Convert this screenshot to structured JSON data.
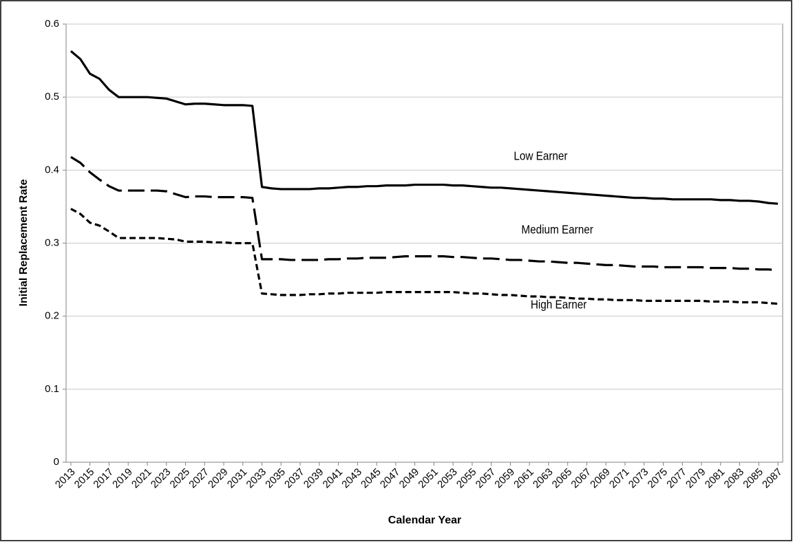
{
  "chart_data": {
    "type": "line",
    "xlabel": "Calendar Year",
    "ylabel": "Initial Replacement Rate",
    "x": [
      2013,
      2014,
      2015,
      2016,
      2017,
      2018,
      2019,
      2020,
      2021,
      2022,
      2023,
      2024,
      2025,
      2026,
      2027,
      2028,
      2029,
      2030,
      2031,
      2032,
      2033,
      2034,
      2035,
      2036,
      2037,
      2038,
      2039,
      2040,
      2041,
      2042,
      2043,
      2044,
      2045,
      2046,
      2047,
      2048,
      2049,
      2050,
      2051,
      2052,
      2053,
      2054,
      2055,
      2056,
      2057,
      2058,
      2059,
      2060,
      2061,
      2062,
      2063,
      2064,
      2065,
      2066,
      2067,
      2068,
      2069,
      2070,
      2071,
      2072,
      2073,
      2074,
      2075,
      2076,
      2077,
      2078,
      2079,
      2080,
      2081,
      2082,
      2083,
      2084,
      2085,
      2086,
      2087
    ],
    "xlim": [
      2012.5,
      2087.5
    ],
    "xticks": [
      2013,
      2015,
      2017,
      2019,
      2021,
      2023,
      2025,
      2027,
      2029,
      2031,
      2033,
      2035,
      2037,
      2039,
      2041,
      2043,
      2045,
      2047,
      2049,
      2051,
      2053,
      2055,
      2057,
      2059,
      2061,
      2063,
      2065,
      2067,
      2069,
      2071,
      2073,
      2075,
      2077,
      2079,
      2081,
      2083,
      2085,
      2087
    ],
    "ylim": [
      0,
      0.6
    ],
    "yticks": [
      0,
      0.1,
      0.2,
      0.3,
      0.4,
      0.5,
      0.6
    ],
    "grid": true,
    "series": [
      {
        "name": "Low Earner",
        "color": "#000000",
        "dash": "solid",
        "values": [
          0.563,
          0.552,
          0.532,
          0.525,
          0.51,
          0.5,
          0.5,
          0.5,
          0.5,
          0.499,
          0.498,
          0.494,
          0.49,
          0.491,
          0.491,
          0.49,
          0.489,
          0.489,
          0.489,
          0.488,
          0.377,
          0.375,
          0.374,
          0.374,
          0.374,
          0.374,
          0.375,
          0.375,
          0.376,
          0.377,
          0.377,
          0.378,
          0.378,
          0.379,
          0.379,
          0.379,
          0.38,
          0.38,
          0.38,
          0.38,
          0.379,
          0.379,
          0.378,
          0.377,
          0.376,
          0.376,
          0.375,
          0.374,
          0.373,
          0.372,
          0.371,
          0.37,
          0.369,
          0.368,
          0.367,
          0.366,
          0.365,
          0.364,
          0.363,
          0.362,
          0.362,
          0.361,
          0.361,
          0.36,
          0.36,
          0.36,
          0.36,
          0.36,
          0.359,
          0.359,
          0.358,
          0.358,
          0.357,
          0.355,
          0.354
        ]
      },
      {
        "name": "Medium Earner",
        "color": "#000000",
        "dash": "dashed",
        "values": [
          0.418,
          0.41,
          0.397,
          0.387,
          0.378,
          0.372,
          0.372,
          0.372,
          0.372,
          0.372,
          0.371,
          0.367,
          0.363,
          0.364,
          0.364,
          0.363,
          0.363,
          0.363,
          0.363,
          0.362,
          0.278,
          0.278,
          0.278,
          0.277,
          0.277,
          0.277,
          0.277,
          0.278,
          0.278,
          0.279,
          0.279,
          0.28,
          0.28,
          0.28,
          0.281,
          0.282,
          0.282,
          0.282,
          0.282,
          0.282,
          0.281,
          0.281,
          0.28,
          0.279,
          0.279,
          0.278,
          0.277,
          0.277,
          0.276,
          0.275,
          0.275,
          0.274,
          0.273,
          0.273,
          0.272,
          0.271,
          0.27,
          0.27,
          0.269,
          0.268,
          0.268,
          0.268,
          0.267,
          0.267,
          0.267,
          0.267,
          0.267,
          0.266,
          0.266,
          0.266,
          0.265,
          0.265,
          0.264,
          0.264,
          0.263
        ]
      },
      {
        "name": "High Earner",
        "color": "#000000",
        "dash": "dotted",
        "values": [
          0.347,
          0.34,
          0.328,
          0.324,
          0.316,
          0.307,
          0.307,
          0.307,
          0.307,
          0.307,
          0.306,
          0.305,
          0.302,
          0.302,
          0.302,
          0.301,
          0.301,
          0.3,
          0.3,
          0.3,
          0.231,
          0.23,
          0.229,
          0.229,
          0.229,
          0.23,
          0.23,
          0.231,
          0.231,
          0.232,
          0.232,
          0.232,
          0.232,
          0.233,
          0.233,
          0.233,
          0.233,
          0.233,
          0.233,
          0.233,
          0.233,
          0.232,
          0.231,
          0.231,
          0.23,
          0.229,
          0.229,
          0.228,
          0.227,
          0.227,
          0.226,
          0.226,
          0.225,
          0.224,
          0.224,
          0.223,
          0.223,
          0.222,
          0.222,
          0.222,
          0.221,
          0.221,
          0.221,
          0.221,
          0.221,
          0.221,
          0.221,
          0.22,
          0.22,
          0.22,
          0.219,
          0.219,
          0.219,
          0.218,
          0.217
        ]
      }
    ]
  }
}
